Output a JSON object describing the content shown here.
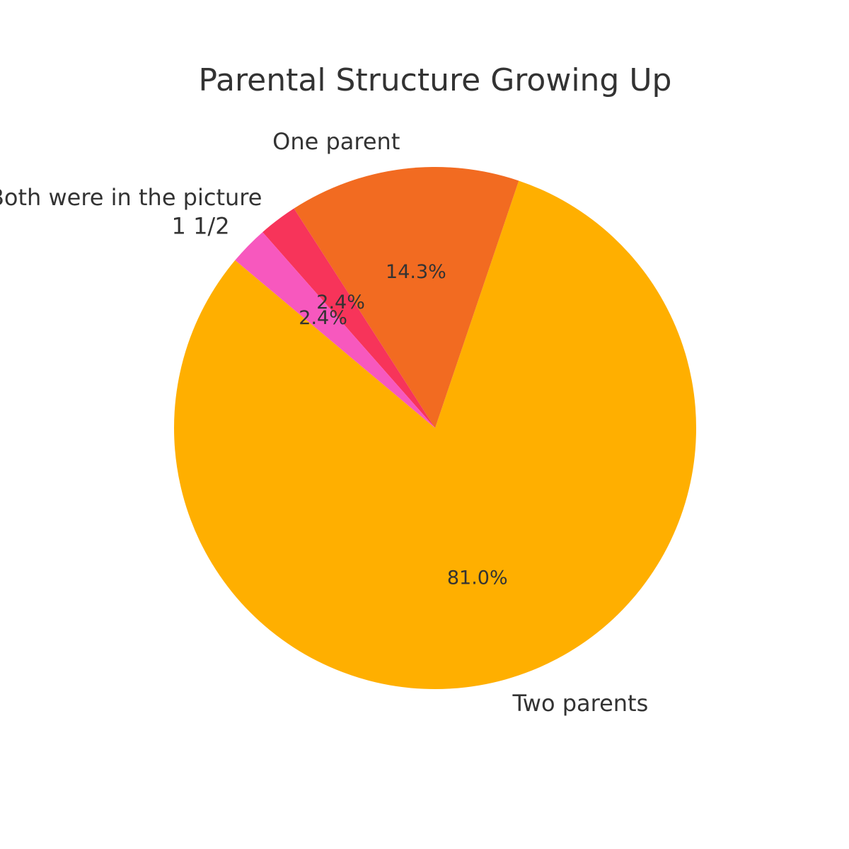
{
  "chart_data": {
    "type": "pie",
    "title": "Parental Structure Growing Up",
    "start_angle_deg": 140,
    "direction": "counterclockwise",
    "slices": [
      {
        "label": "Two parents",
        "value": 81.0,
        "pct_label": "81.0%",
        "color": "#FFAF00"
      },
      {
        "label": "One parent",
        "value": 14.3,
        "pct_label": "14.3%",
        "color": "#F26B21"
      },
      {
        "label": "Both were in the picture",
        "value": 2.4,
        "pct_label": "2.4%",
        "color": "#F7345A"
      },
      {
        "label": "1 1/2",
        "value": 2.4,
        "pct_label": "2.4%",
        "color": "#F758BE"
      }
    ]
  }
}
